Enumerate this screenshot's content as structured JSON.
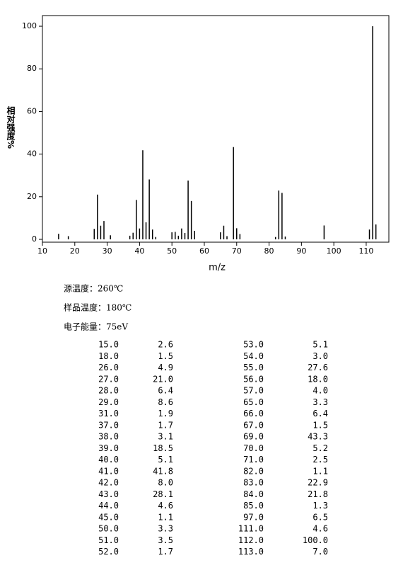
{
  "chart_data": {
    "type": "bar",
    "xlabel": "m/z",
    "ylabel": "相对强度%",
    "x": [
      15,
      18,
      26,
      27,
      28,
      29,
      31,
      37,
      38,
      39,
      40,
      41,
      42,
      43,
      44,
      45,
      50,
      51,
      52,
      53,
      54,
      55,
      56,
      57,
      65,
      66,
      67,
      69,
      70,
      71,
      82,
      83,
      84,
      85,
      97,
      111,
      112,
      113
    ],
    "x_labels": [
      "15.0",
      "18.0",
      "26.0",
      "27.0",
      "28.0",
      "29.0",
      "31.0",
      "37.0",
      "38.0",
      "39.0",
      "40.0",
      "41.0",
      "42.0",
      "43.0",
      "44.0",
      "45.0",
      "50.0",
      "51.0",
      "52.0",
      "53.0",
      "54.0",
      "55.0",
      "56.0",
      "57.0",
      "65.0",
      "66.0",
      "67.0",
      "69.0",
      "70.0",
      "71.0",
      "82.0",
      "83.0",
      "84.0",
      "85.0",
      "97.0",
      "111.0",
      "112.0",
      "113.0"
    ],
    "values": [
      2.6,
      1.5,
      4.9,
      21,
      6.4,
      8.6,
      1.9,
      1.7,
      3.1,
      18.5,
      5.1,
      41.8,
      8,
      28.1,
      4.6,
      1.1,
      3.3,
      3.5,
      1.7,
      5.1,
      3,
      27.6,
      18,
      4,
      3.3,
      6.4,
      1.5,
      43.3,
      5.2,
      2.5,
      1.1,
      22.9,
      21.8,
      1.3,
      6.5,
      4.6,
      100,
      7
    ],
    "value_labels": [
      "2.6",
      "1.5",
      "4.9",
      "21.0",
      "6.4",
      "8.6",
      "1.9",
      "1.7",
      "3.1",
      "18.5",
      "5.1",
      "41.8",
      "8.0",
      "28.1",
      "4.6",
      "1.1",
      "3.3",
      "3.5",
      "1.7",
      "5.1",
      "3.0",
      "27.6",
      "18.0",
      "4.0",
      "3.3",
      "6.4",
      "1.5",
      "43.3",
      "5.2",
      "2.5",
      "1.1",
      "22.9",
      "21.8",
      "1.3",
      "6.5",
      "4.6",
      "100.0",
      "7.0"
    ],
    "color": "#000000",
    "xlim": [
      10,
      117
    ],
    "ylim": [
      0,
      105
    ],
    "xticks": [
      10,
      20,
      30,
      40,
      50,
      60,
      70,
      80,
      90,
      100,
      110
    ],
    "yticks": [
      0,
      20,
      40,
      60,
      80,
      100
    ]
  },
  "info": [
    "源温度：260℃",
    "样品温度：180℃",
    "电子能量：75eV"
  ]
}
